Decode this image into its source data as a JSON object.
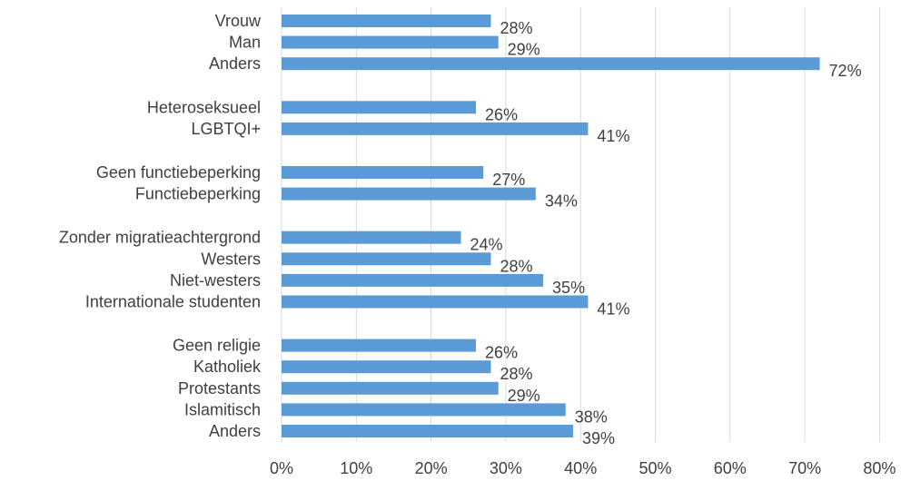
{
  "chart_data": {
    "type": "bar",
    "orientation": "horizontal",
    "title": "",
    "xlabel": "",
    "ylabel": "",
    "xlim": [
      0,
      80
    ],
    "x_ticks": [
      "0%",
      "10%",
      "20%",
      "30%",
      "40%",
      "50%",
      "60%",
      "70%",
      "80%"
    ],
    "grid": true,
    "bar_color": "#5b9bd5",
    "groups": [
      {
        "categories": [
          "Vrouw",
          "Man",
          "Anders"
        ],
        "values": [
          28,
          29,
          72
        ],
        "labels": [
          "28%",
          "29%",
          "72%"
        ]
      },
      {
        "categories": [
          "Heteroseksueel",
          "LGBTQI+"
        ],
        "values": [
          26,
          41
        ],
        "labels": [
          "26%",
          "41%"
        ]
      },
      {
        "categories": [
          "Geen functiebeperking",
          "Functiebeperking"
        ],
        "values": [
          27,
          34
        ],
        "labels": [
          "27%",
          "34%"
        ]
      },
      {
        "categories": [
          "Zonder migratieachtergrond",
          "Westers",
          "Niet-westers",
          "Internationale studenten"
        ],
        "values": [
          24,
          28,
          35,
          41
        ],
        "labels": [
          "24%",
          "28%",
          "35%",
          "41%"
        ]
      },
      {
        "categories": [
          "Geen religie",
          "Katholiek",
          "Protestants",
          "Islamitisch",
          "Anders"
        ],
        "values": [
          26,
          28,
          29,
          38,
          39
        ],
        "labels": [
          "26%",
          "28%",
          "29%",
          "38%",
          "39%"
        ]
      }
    ]
  }
}
